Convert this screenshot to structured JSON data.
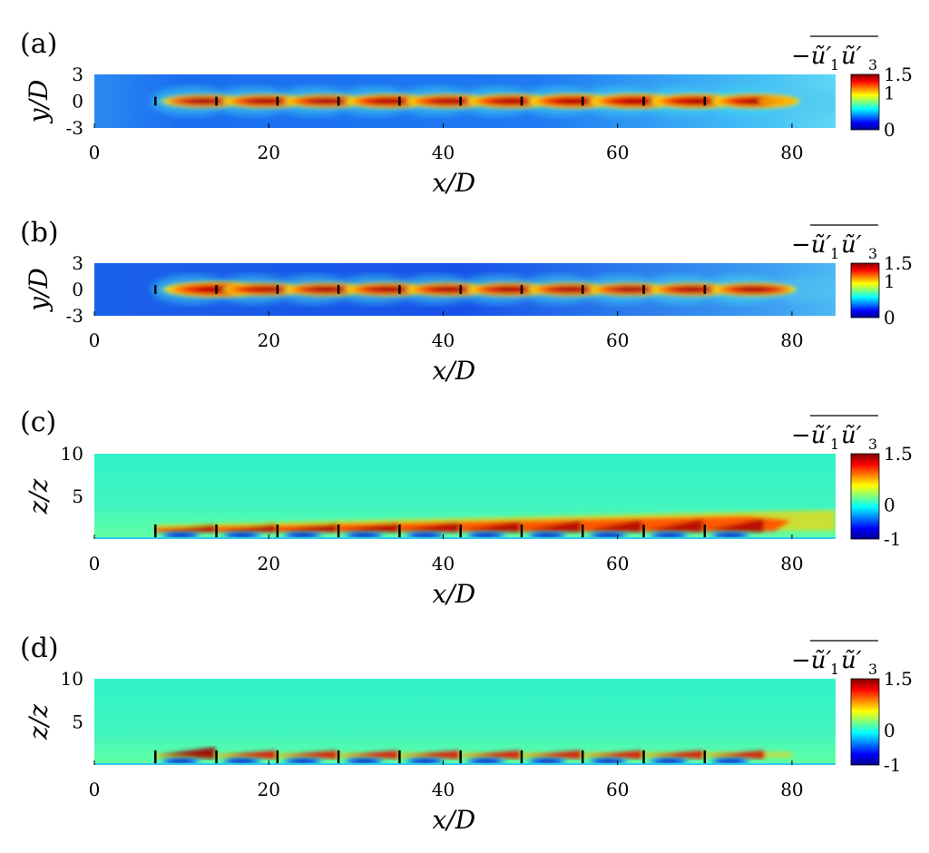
{
  "chart_data": [
    {
      "type": "heatmap",
      "panel_label": "(a)",
      "xlabel": "x/D",
      "ylabel": "y/D",
      "xlim": [
        0,
        85
      ],
      "ylim": [
        -3,
        3
      ],
      "xticks": [
        "0",
        "20",
        "40",
        "60",
        "80"
      ],
      "yticks": [
        "3",
        "0",
        "-3"
      ],
      "colorbar": {
        "label": "−ũ′₁ũ′₃ (overlined)",
        "range": [
          0,
          1.5
        ],
        "ticks": [
          "1.5",
          "1",
          "0"
        ]
      },
      "turbine_x": [
        7,
        14,
        21,
        28,
        35,
        42,
        49,
        56,
        63,
        70
      ],
      "wake_peak": [
        0.9,
        1.0,
        0.95,
        1.1,
        1.05,
        1.1,
        1.2,
        1.3,
        1.2,
        1.15
      ],
      "colormap": "jet"
    },
    {
      "type": "heatmap",
      "panel_label": "(b)",
      "xlabel": "x/D",
      "ylabel": "y/D",
      "xlim": [
        0,
        85
      ],
      "ylim": [
        -3,
        3
      ],
      "xticks": [
        "0",
        "20",
        "40",
        "60",
        "80"
      ],
      "yticks": [
        "3",
        "0",
        "-3"
      ],
      "colorbar": {
        "label": "−ũ′₁ũ′₃ (overlined)",
        "range": [
          0,
          1.5
        ],
        "ticks": [
          "1.5",
          "1",
          "0"
        ]
      },
      "turbine_x": [
        7,
        14,
        21,
        28,
        35,
        42,
        49,
        56,
        63,
        70
      ],
      "wake_peak": [
        1.5,
        0.9,
        0.95,
        1.0,
        1.0,
        1.0,
        0.95,
        0.9,
        0.95,
        1.0
      ],
      "colormap": "jet"
    },
    {
      "type": "heatmap",
      "panel_label": "(c)",
      "xlabel": "x/D",
      "ylabel": "z/z_h",
      "xlim": [
        0,
        85
      ],
      "ylim": [
        0,
        10
      ],
      "xticks": [
        "0",
        "20",
        "40",
        "60",
        "80"
      ],
      "yticks": [
        "10",
        "5"
      ],
      "colorbar": {
        "label": "−ũ′₁ũ′₃ (overlined)",
        "range": [
          -1,
          1.5
        ],
        "ticks": [
          "1.5",
          "0",
          "-1"
        ]
      },
      "turbine_x": [
        7,
        14,
        21,
        28,
        35,
        42,
        49,
        56,
        63,
        70
      ],
      "colormap": "jet"
    },
    {
      "type": "heatmap",
      "panel_label": "(d)",
      "xlabel": "x/D",
      "ylabel": "z/z_h",
      "xlim": [
        0,
        85
      ],
      "ylim": [
        0,
        10
      ],
      "xticks": [
        "0",
        "20",
        "40",
        "60",
        "80"
      ],
      "yticks": [
        "10",
        "5"
      ],
      "colorbar": {
        "label": "−ũ′₁ũ′₃ (overlined)",
        "range": [
          -1,
          1.5
        ],
        "ticks": [
          "1.5",
          "0",
          "-1"
        ]
      },
      "turbine_x": [
        7,
        14,
        21,
        28,
        35,
        42,
        49,
        56,
        63,
        70
      ],
      "colormap": "jet"
    }
  ]
}
